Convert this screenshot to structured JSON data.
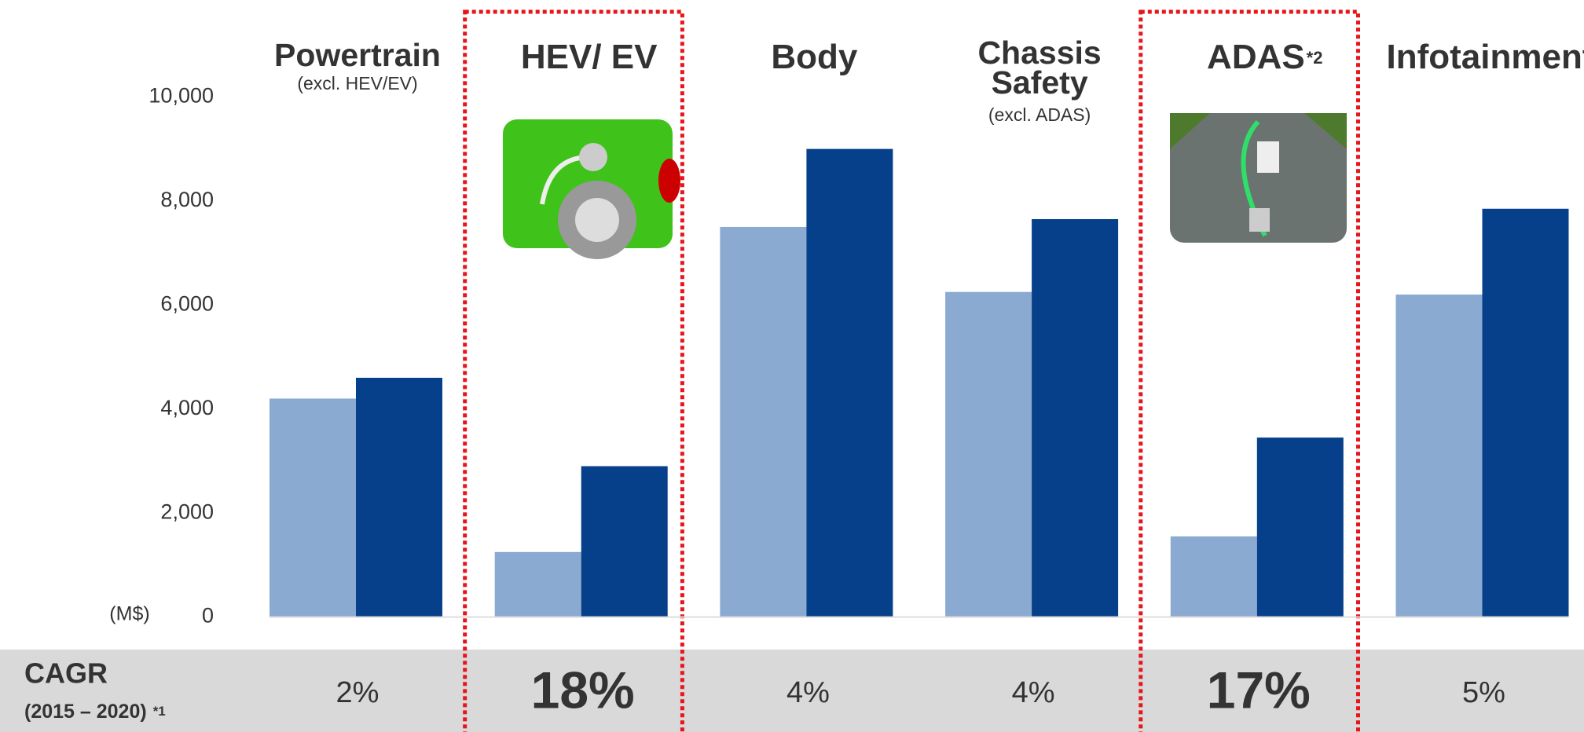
{
  "chart_data": {
    "type": "bar",
    "categories": [
      "Powertrain",
      "HEV/ EV",
      "Body",
      "Chassis Safety",
      "ADAS",
      "Infotainment"
    ],
    "category_notes": [
      "(excl. HEV/EV)",
      null,
      null,
      "(excl. ADAS)",
      "*2",
      null
    ],
    "highlight": [
      false,
      true,
      false,
      false,
      true,
      false
    ],
    "series": [
      {
        "color": "#8aaad2",
        "values": [
          4200,
          1250,
          7500,
          6250,
          1550,
          6200
        ]
      },
      {
        "color": "#063f8a",
        "values": [
          4600,
          2900,
          9000,
          7650,
          3450,
          7850
        ]
      }
    ],
    "y_unit": "(M$)",
    "ylim": [
      0,
      10000
    ],
    "yticks": [
      0,
      {
        "value": 2000,
        "label": "2,000"
      },
      {
        "value": 4000,
        "label": "4,000"
      },
      {
        "value": 6000,
        "label": "6,000"
      },
      {
        "value": 8000,
        "label": "8,000"
      },
      {
        "value": 10000,
        "label": "10,000"
      }
    ],
    "cagr": {
      "title": "CAGR",
      "subtitle": "(2015 – 2020)",
      "note": "*1",
      "labels": [
        "2%",
        "18%",
        "4%",
        "4%",
        "17%",
        "5%"
      ]
    }
  }
}
